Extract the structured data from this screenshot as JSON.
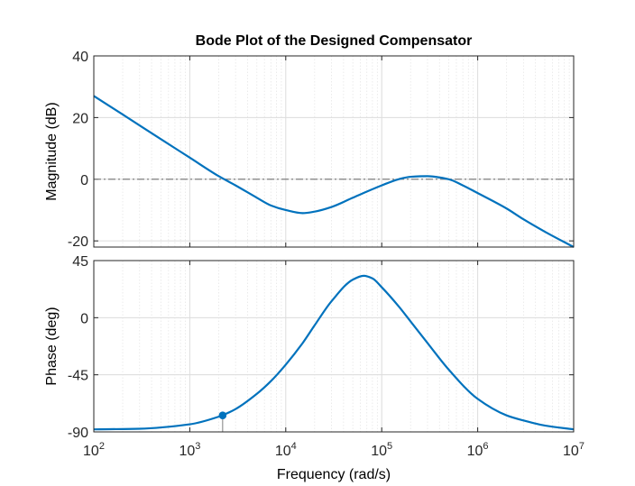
{
  "chart_data": {
    "type": "line",
    "title": "Bode Plot of the Designed Compensator",
    "xlabel": "Frequency  (rad/s)",
    "xscale": "log",
    "xlim": [
      100,
      10000000
    ],
    "x_tick_labels": [
      {
        "base": "10",
        "exp": "2"
      },
      {
        "base": "10",
        "exp": "3"
      },
      {
        "base": "10",
        "exp": "4"
      },
      {
        "base": "10",
        "exp": "5"
      },
      {
        "base": "10",
        "exp": "6"
      },
      {
        "base": "10",
        "exp": "7"
      }
    ],
    "x_ticks": [
      100,
      1000,
      10000,
      100000,
      1000000,
      10000000
    ],
    "grid": true,
    "line_color": "#0072BD",
    "reference_line_color": "#808080",
    "subplots": [
      {
        "name": "magnitude",
        "ylabel": "Magnitude (dB)",
        "ylim": [
          -22,
          40
        ],
        "y_ticks": [
          40,
          20,
          0,
          -20
        ],
        "y_tick_labels": [
          "40",
          "20",
          "0",
          "-20"
        ],
        "reference_line": {
          "y": 0,
          "style": "dash-dot"
        },
        "series": [
          {
            "x": [
              100,
              200,
              500,
              1000,
              2000,
              3000,
              5000,
              7000,
              10000,
              15000,
              20000,
              30000,
              50000,
              70000,
              100000,
              150000,
              200000,
              300000,
              500000,
              700000,
              1000000,
              2000000,
              3000000,
              5000000,
              10000000
            ],
            "y": [
              27,
              21,
              13,
              7,
              1,
              -2,
              -6,
              -8.5,
              -10,
              -11,
              -10.5,
              -9,
              -6,
              -4,
              -2,
              0,
              0.8,
              1,
              0,
              -2,
              -4.5,
              -9.5,
              -13,
              -17,
              -22
            ]
          }
        ]
      },
      {
        "name": "phase",
        "ylabel": "Phase (deg)",
        "ylim": [
          -90,
          45
        ],
        "y_ticks": [
          45,
          0,
          -45,
          -90
        ],
        "y_tick_labels": [
          "45",
          "0",
          "-45",
          "-90"
        ],
        "series": [
          {
            "x": [
              100,
              300,
              1000,
              2000,
              3000,
              5000,
              7000,
              10000,
              15000,
              20000,
              30000,
              50000,
              65000,
              80000,
              100000,
              150000,
              200000,
              300000,
              500000,
              1000000,
              2000000,
              3000000,
              5000000,
              10000000
            ],
            "y": [
              -88,
              -87.5,
              -84,
              -78,
              -72,
              -60,
              -50,
              -37,
              -20,
              -6,
              13,
              30,
              33,
              31,
              24,
              9,
              -3,
              -20,
              -41,
              -64,
              -77,
              -81,
              -85,
              -88
            ]
          }
        ],
        "marker": {
          "x": 2200,
          "y": -77
        }
      }
    ]
  }
}
